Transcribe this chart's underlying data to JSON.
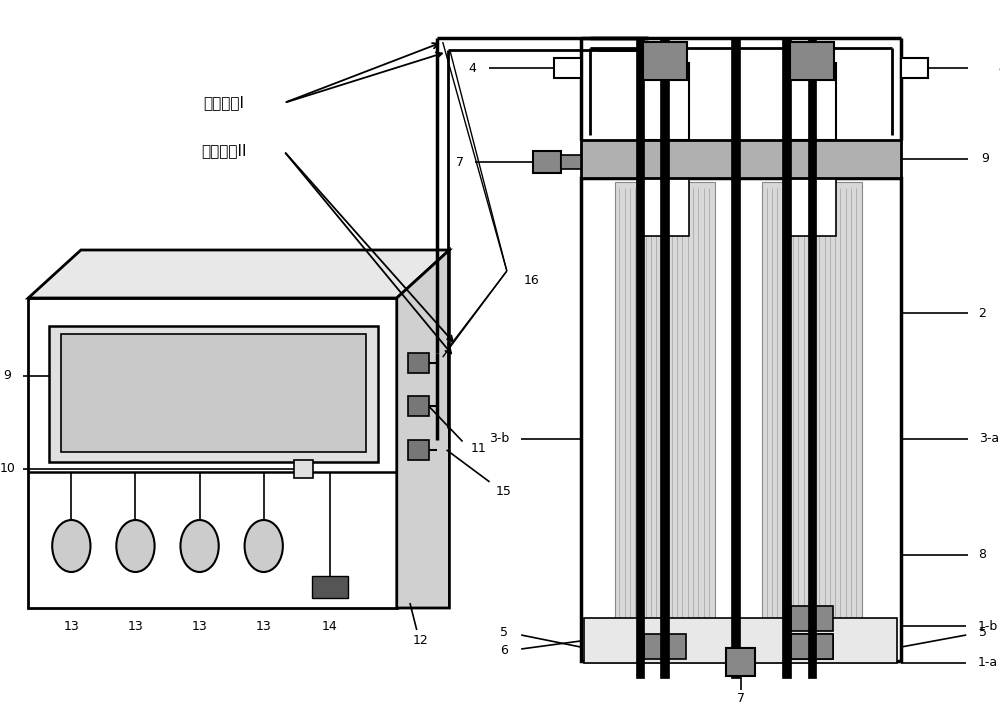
{
  "bg": "#ffffff",
  "lc": "#000000",
  "gray1": "#aaaaaa",
  "gray2": "#888888",
  "gray3": "#cccccc",
  "gray4": "#dddddd",
  "dark_gray": "#666666",
  "labels": {
    "cI": "测试回路I",
    "cII": "测试回路II",
    "L4": "4",
    "L7": "7",
    "L9": "9",
    "L2": "2",
    "L3a": "3-a",
    "L3b": "3-b",
    "L8": "8",
    "L5": "5",
    "L6": "6",
    "L1a": "1-a",
    "L1b": "1-b",
    "L9b": "9",
    "L10": "10",
    "L11": "11",
    "L12": "12",
    "L13": "13",
    "L14": "14",
    "L15": "15",
    "L16": "16"
  }
}
